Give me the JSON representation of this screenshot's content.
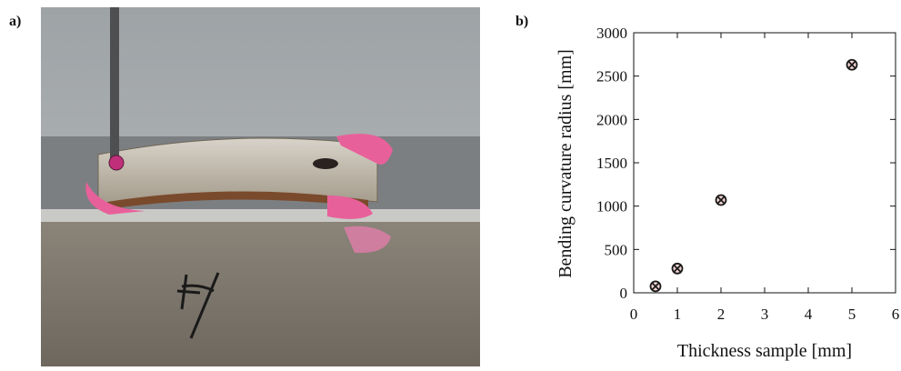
{
  "panel_labels": [
    "a)",
    "b)"
  ],
  "chart_data": {
    "type": "scatter",
    "x_label": "Thickness sample [mm]",
    "y_label": "Bending curvature radius [mm]",
    "series": [
      {
        "color": "#f3d2d2",
        "x": [
          0.5,
          1,
          2,
          5
        ],
        "values": [
          75,
          280,
          1070,
          2630
        ]
      }
    ],
    "xlim": [
      0,
      6
    ],
    "xticks": [
      0,
      1,
      2,
      3,
      4,
      5,
      6
    ],
    "ylim": [
      0,
      3000
    ],
    "yticks": [
      0,
      500,
      1000,
      1500,
      2000,
      2500,
      3000
    ]
  }
}
